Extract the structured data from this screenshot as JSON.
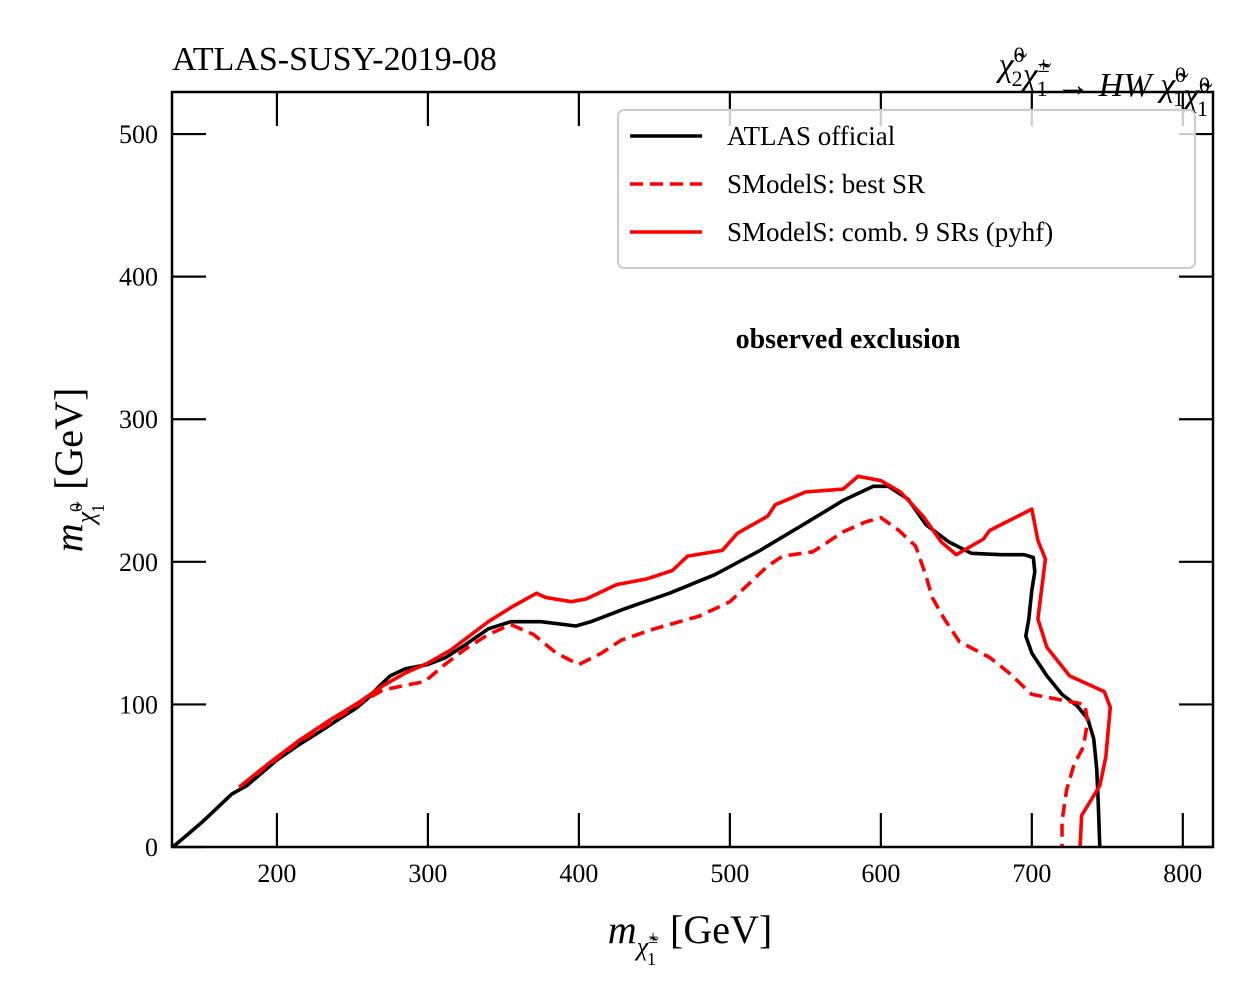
{
  "chart_data": {
    "type": "line",
    "title_left": "ATLAS-SUSY-2019-08",
    "title_right": {
      "text": "χ̃⁰₂χ̃±₁ → HW χ̃⁰₁χ̃⁰₁",
      "parts": [
        {
          "base": "χ̃",
          "sup": "0",
          "sub": "2"
        },
        {
          "base": "χ̃",
          "sup": "±",
          "sub": "1"
        },
        {
          "base": " → HW ",
          "sup": "",
          "sub": ""
        },
        {
          "base": "χ̃",
          "sup": "0",
          "sub": "1"
        },
        {
          "base": "χ̃",
          "sup": "0",
          "sub": "1"
        }
      ]
    },
    "xlabel": {
      "base": "m",
      "subbase": "χ̃",
      "subsup": "±",
      "subsub": "1",
      "unit": "[GeV]"
    },
    "ylabel": {
      "base": "m",
      "subbase": "χ̃",
      "subsup": "0",
      "subsub": "1",
      "unit": "[GeV]"
    },
    "xlim": [
      130.5,
      820
    ],
    "ylim": [
      0,
      529.5
    ],
    "xticks": [
      200,
      300,
      400,
      500,
      600,
      700,
      800
    ],
    "yticks": [
      0,
      100,
      200,
      300,
      400,
      500
    ],
    "grid": false,
    "legend_position": "top-right",
    "annotation": "observed exclusion",
    "series": [
      {
        "name": "ATLAS official",
        "color": "#000000",
        "style": "solid",
        "points": [
          [
            131,
            0
          ],
          [
            140,
            8
          ],
          [
            150,
            17
          ],
          [
            158,
            25
          ],
          [
            163,
            30
          ],
          [
            170,
            37
          ],
          [
            180,
            43
          ],
          [
            190,
            52
          ],
          [
            200,
            61
          ],
          [
            215,
            72
          ],
          [
            230,
            82
          ],
          [
            240,
            89
          ],
          [
            252,
            97
          ],
          [
            260,
            104
          ],
          [
            268,
            113
          ],
          [
            275,
            120
          ],
          [
            285,
            125
          ],
          [
            300,
            128
          ],
          [
            312,
            133
          ],
          [
            325,
            142
          ],
          [
            340,
            153
          ],
          [
            355,
            158
          ],
          [
            375,
            158
          ],
          [
            398,
            155
          ],
          [
            408,
            158
          ],
          [
            430,
            167
          ],
          [
            460,
            178
          ],
          [
            490,
            191
          ],
          [
            520,
            208
          ],
          [
            550,
            227
          ],
          [
            575,
            243
          ],
          [
            595,
            253
          ],
          [
            605,
            253
          ],
          [
            618,
            244
          ],
          [
            630,
            226
          ],
          [
            645,
            214
          ],
          [
            660,
            206
          ],
          [
            680,
            205
          ],
          [
            695,
            205
          ],
          [
            701,
            203
          ],
          [
            702,
            193
          ],
          [
            700,
            180
          ],
          [
            698,
            160
          ],
          [
            696,
            148
          ],
          [
            700,
            136
          ],
          [
            710,
            120
          ],
          [
            720,
            107
          ],
          [
            730,
            99
          ],
          [
            737,
            90
          ],
          [
            741,
            76
          ],
          [
            743,
            55
          ],
          [
            744,
            30
          ],
          [
            745,
            0
          ]
        ]
      },
      {
        "name": "SModelS: best SR",
        "color": "#ff0000",
        "style": "dashed",
        "points": [
          [
            175,
            42
          ],
          [
            195,
            58
          ],
          [
            215,
            74
          ],
          [
            235,
            87
          ],
          [
            255,
            101
          ],
          [
            270,
            110
          ],
          [
            283,
            113
          ],
          [
            298,
            116
          ],
          [
            310,
            127
          ],
          [
            325,
            139
          ],
          [
            340,
            149
          ],
          [
            355,
            156
          ],
          [
            370,
            149
          ],
          [
            385,
            136
          ],
          [
            400,
            128
          ],
          [
            415,
            136
          ],
          [
            428,
            145
          ],
          [
            450,
            153
          ],
          [
            480,
            162
          ],
          [
            500,
            172
          ],
          [
            515,
            187
          ],
          [
            525,
            197
          ],
          [
            535,
            204
          ],
          [
            555,
            207
          ],
          [
            575,
            221
          ],
          [
            590,
            228
          ],
          [
            600,
            231
          ],
          [
            612,
            222
          ],
          [
            623,
            211
          ],
          [
            630,
            190
          ],
          [
            634,
            175
          ],
          [
            642,
            160
          ],
          [
            652,
            144
          ],
          [
            672,
            133
          ],
          [
            685,
            122
          ],
          [
            700,
            107
          ],
          [
            715,
            104
          ],
          [
            735,
            100
          ],
          [
            737,
            88
          ],
          [
            734,
            70
          ],
          [
            728,
            58
          ],
          [
            723,
            40
          ],
          [
            720,
            18
          ],
          [
            720,
            0
          ]
        ]
      },
      {
        "name": "SModelS: comb. 9 SRs (pyhf)",
        "color": "#ff0000",
        "style": "solid",
        "points": [
          [
            175,
            42
          ],
          [
            195,
            59
          ],
          [
            215,
            75
          ],
          [
            235,
            89
          ],
          [
            255,
            102
          ],
          [
            270,
            113
          ],
          [
            285,
            122
          ],
          [
            300,
            129
          ],
          [
            315,
            138
          ],
          [
            330,
            150
          ],
          [
            340,
            158
          ],
          [
            355,
            168
          ],
          [
            372,
            178
          ],
          [
            378,
            175
          ],
          [
            395,
            172
          ],
          [
            405,
            174
          ],
          [
            425,
            184
          ],
          [
            445,
            188
          ],
          [
            462,
            194
          ],
          [
            472,
            204
          ],
          [
            495,
            208
          ],
          [
            505,
            220
          ],
          [
            525,
            232
          ],
          [
            530,
            240
          ],
          [
            550,
            249
          ],
          [
            575,
            251
          ],
          [
            585,
            260
          ],
          [
            600,
            257
          ],
          [
            613,
            249
          ],
          [
            628,
            232
          ],
          [
            640,
            214
          ],
          [
            650,
            205
          ],
          [
            668,
            216
          ],
          [
            672,
            222
          ],
          [
            700,
            237
          ],
          [
            704,
            215
          ],
          [
            709,
            202
          ],
          [
            704,
            160
          ],
          [
            710,
            140
          ],
          [
            725,
            120
          ],
          [
            748,
            109
          ],
          [
            752,
            98
          ],
          [
            749,
            63
          ],
          [
            745,
            43
          ],
          [
            733,
            22
          ],
          [
            732,
            0
          ]
        ]
      }
    ]
  }
}
